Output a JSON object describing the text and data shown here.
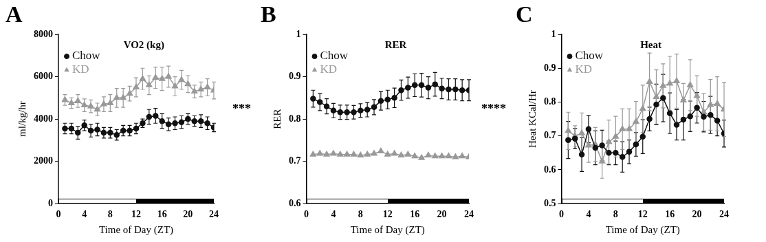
{
  "chart_data": [
    {
      "type": "line",
      "title": "VO2 (kg)",
      "xlabel": "Time of Day (ZT)",
      "ylabel": "ml/kg/hr",
      "annotations": [
        "A",
        "***"
      ],
      "x": [
        1,
        2,
        3,
        4,
        5,
        6,
        7,
        8,
        9,
        10,
        11,
        12,
        13,
        14,
        15,
        16,
        17,
        18,
        19,
        20,
        21,
        22,
        23,
        24
      ],
      "xlim": [
        0,
        24
      ],
      "xticks": [
        0,
        4,
        8,
        12,
        16,
        20,
        24
      ],
      "ylim": [
        0,
        8000
      ],
      "yticks": [
        0,
        2000,
        4000,
        6000,
        8000
      ],
      "grid": false,
      "legend": "top left",
      "series": [
        {
          "name": "Chow",
          "color": "#111111",
          "marker": "circle",
          "values": [
            3550,
            3550,
            3350,
            3700,
            3450,
            3500,
            3350,
            3350,
            3250,
            3450,
            3450,
            3550,
            3800,
            4100,
            4150,
            3900,
            3750,
            3800,
            3850,
            4000,
            3900,
            3900,
            3800,
            3600
          ],
          "errors": [
            250,
            250,
            300,
            250,
            300,
            300,
            250,
            250,
            250,
            250,
            250,
            250,
            200,
            350,
            350,
            350,
            300,
            300,
            300,
            250,
            250,
            300,
            300,
            200
          ]
        },
        {
          "name": "KD",
          "color": "#999999",
          "marker": "triangle",
          "values": [
            4900,
            4750,
            4850,
            4650,
            4600,
            4450,
            4700,
            4750,
            5000,
            5000,
            5200,
            5500,
            5900,
            5600,
            5950,
            5900,
            6000,
            5550,
            5850,
            5650,
            5300,
            5400,
            5500,
            5350
          ],
          "errors": [
            250,
            250,
            300,
            300,
            300,
            300,
            350,
            400,
            450,
            450,
            350,
            450,
            500,
            450,
            500,
            550,
            500,
            450,
            450,
            400,
            300,
            350,
            400,
            400
          ]
        }
      ]
    },
    {
      "type": "line",
      "title": "RER",
      "xlabel": "Time of Day (ZT)",
      "ylabel": "RER",
      "annotations": [
        "B",
        "****"
      ],
      "x": [
        1,
        2,
        3,
        4,
        5,
        6,
        7,
        8,
        9,
        10,
        11,
        12,
        13,
        14,
        15,
        16,
        17,
        18,
        19,
        20,
        21,
        22,
        23,
        24
      ],
      "xlim": [
        0,
        24
      ],
      "xticks": [
        0,
        4,
        8,
        12,
        16,
        20,
        24
      ],
      "ylim": [
        0.6,
        1.0
      ],
      "yticks": [
        0.6,
        0.7,
        0.8,
        0.9,
        1.0
      ],
      "grid": false,
      "legend": "top left",
      "series": [
        {
          "name": "Chow",
          "color": "#111111",
          "marker": "circle",
          "values": [
            0.848,
            0.84,
            0.83,
            0.82,
            0.816,
            0.816,
            0.816,
            0.82,
            0.822,
            0.828,
            0.843,
            0.846,
            0.85,
            0.868,
            0.874,
            0.88,
            0.88,
            0.874,
            0.882,
            0.872,
            0.87,
            0.87,
            0.868,
            0.868
          ],
          "errors": [
            0.02,
            0.02,
            0.018,
            0.017,
            0.017,
            0.017,
            0.016,
            0.016,
            0.017,
            0.018,
            0.022,
            0.022,
            0.023,
            0.024,
            0.025,
            0.027,
            0.028,
            0.026,
            0.028,
            0.024,
            0.025,
            0.025,
            0.025,
            0.025
          ]
        },
        {
          "name": "KD",
          "color": "#999999",
          "marker": "triangle",
          "values": [
            0.716,
            0.718,
            0.716,
            0.718,
            0.716,
            0.716,
            0.716,
            0.714,
            0.716,
            0.718,
            0.724,
            0.716,
            0.718,
            0.714,
            0.716,
            0.712,
            0.708,
            0.714,
            0.712,
            0.712,
            0.712,
            0.71,
            0.712,
            0.71
          ]
        }
      ]
    },
    {
      "type": "line",
      "title": "Heat",
      "xlabel": "Time of Day (ZT)",
      "ylabel": "Heat KCal/Hr",
      "annotations": [
        "C"
      ],
      "x": [
        1,
        2,
        3,
        4,
        5,
        6,
        7,
        8,
        9,
        10,
        11,
        12,
        13,
        14,
        15,
        16,
        17,
        18,
        19,
        20,
        21,
        22,
        23,
        24
      ],
      "xlim": [
        0,
        24
      ],
      "xticks": [
        0,
        4,
        8,
        12,
        16,
        20,
        24
      ],
      "ylim": [
        0.5,
        1.0
      ],
      "yticks": [
        0.5,
        0.6,
        0.7,
        0.8,
        0.9,
        1.0
      ],
      "grid": false,
      "legend": "top left",
      "series": [
        {
          "name": "Chow",
          "color": "#111111",
          "marker": "circle",
          "values": [
            0.688,
            0.692,
            0.645,
            0.72,
            0.665,
            0.672,
            0.65,
            0.65,
            0.638,
            0.653,
            0.675,
            0.698,
            0.75,
            0.793,
            0.812,
            0.767,
            0.733,
            0.748,
            0.758,
            0.783,
            0.757,
            0.762,
            0.745,
            0.707
          ],
          "errors": [
            0.055,
            0.03,
            0.05,
            0.04,
            0.05,
            0.045,
            0.035,
            0.035,
            0.045,
            0.035,
            0.035,
            0.05,
            0.035,
            0.06,
            0.07,
            0.06,
            0.045,
            0.06,
            0.045,
            0.045,
            0.045,
            0.055,
            0.045,
            0.04
          ]
        },
        {
          "name": "KD",
          "color": "#999999",
          "marker": "triangle",
          "values": [
            0.715,
            0.7,
            0.708,
            0.672,
            0.675,
            0.625,
            0.682,
            0.698,
            0.72,
            0.72,
            0.742,
            0.78,
            0.86,
            0.815,
            0.848,
            0.855,
            0.862,
            0.805,
            0.85,
            0.818,
            0.77,
            0.792,
            0.795,
            0.778
          ],
          "errors": [
            0.055,
            0.03,
            0.06,
            0.05,
            0.05,
            0.05,
            0.065,
            0.06,
            0.06,
            0.06,
            0.06,
            0.07,
            0.085,
            0.08,
            0.065,
            0.08,
            0.08,
            0.05,
            0.075,
            0.06,
            0.055,
            0.075,
            0.08,
            0.08
          ]
        }
      ]
    }
  ]
}
